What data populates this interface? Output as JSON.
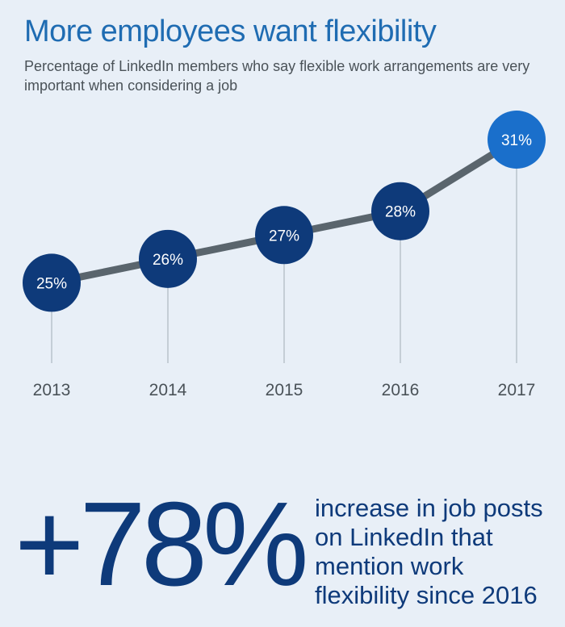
{
  "title": "More employees want flexibility",
  "subtitle": "Percentage of LinkedIn members who say flexible work arrangements are very important when considering a job",
  "chart_data": {
    "type": "line",
    "x": [
      "2013",
      "2014",
      "2015",
      "2016",
      "2017"
    ],
    "values": [
      25,
      26,
      27,
      28,
      31
    ],
    "labels": [
      "25%",
      "26%",
      "27%",
      "28%",
      "31%"
    ],
    "ylim": [
      24,
      31
    ],
    "grid": false,
    "colors": {
      "line": "#5a656d",
      "point": "#0e3a7a",
      "highlight": "#1a6fcb",
      "label": "#ffffff",
      "stem": "#b9c3cc",
      "tick": "#4a5258"
    }
  },
  "stat": {
    "value": "+78%",
    "description": "increase in job posts on LinkedIn that mention work flexibility since 2016"
  }
}
